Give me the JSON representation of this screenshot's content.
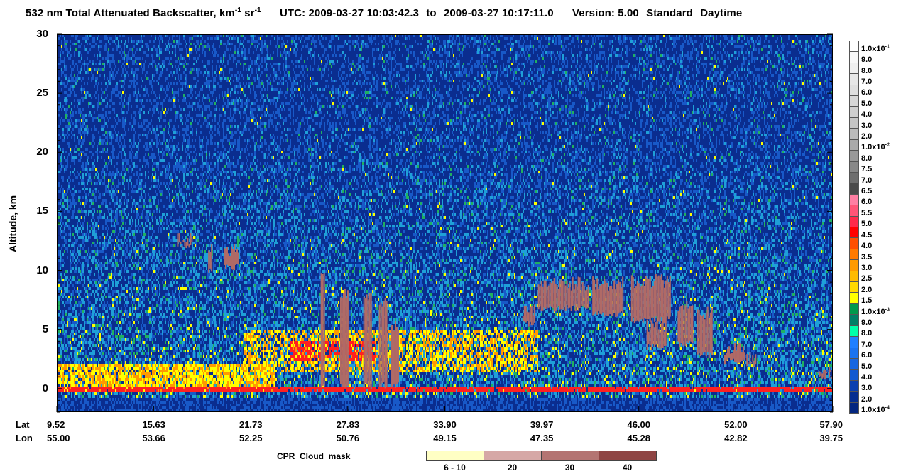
{
  "title": {
    "product_prefix": "532 nm Total Attenuated Backscatter, km",
    "sup1": "-1",
    "sr": " sr",
    "sup2": "-1",
    "utc_label": "UTC:",
    "start_time": "2009-03-27 10:03:42.3",
    "to_label": "to",
    "end_time": "2009-03-27 10:17:11.0",
    "version": "Version: 5.00",
    "mode": "Standard",
    "daynight": "Daytime"
  },
  "chart_data": {
    "type": "heatmap",
    "ylabel": "Altitude, km",
    "ylim": [
      -2,
      30
    ],
    "yticks": [
      "0",
      "5",
      "10",
      "15",
      "20",
      "25",
      "30"
    ],
    "ytick_values": [
      0,
      5,
      10,
      15,
      20,
      25,
      30
    ],
    "x_row_titles": [
      "Lat",
      "Lon"
    ],
    "lat_ticks": [
      "9.52",
      "15.63",
      "21.73",
      "27.83",
      "33.90",
      "39.97",
      "46.00",
      "52.00",
      "57.90"
    ],
    "lon_ticks": [
      "55.00",
      "53.66",
      "52.25",
      "50.76",
      "49.15",
      "47.35",
      "45.28",
      "42.82",
      "39.75"
    ],
    "colorbar": {
      "labels": [
        "1.0x10",
        "9.0",
        "8.0",
        "7.0",
        "6.0",
        "5.0",
        "4.0",
        "3.0",
        "2.0",
        "1.0x10",
        "8.0",
        "7.5",
        "7.0",
        "6.5",
        "6.0",
        "5.5",
        "5.0",
        "4.5",
        "4.0",
        "3.5",
        "3.0",
        "2.5",
        "2.0",
        "1.5",
        "1.0x10",
        "9.0",
        "8.0",
        "7.0",
        "6.0",
        "5.0",
        "4.0",
        "3.0",
        "2.0",
        "1.0x10"
      ],
      "exponents": [
        "-1",
        "",
        "",
        "",
        "",
        "",
        "",
        "",
        "",
        "-2",
        "",
        "",
        "",
        "",
        "",
        "",
        "",
        "",
        "",
        "",
        "",
        "",
        "",
        "",
        "-3",
        "",
        "",
        "",
        "",
        "",
        "",
        "",
        "",
        "-4"
      ],
      "colors": [
        "#ffffff",
        "#f7f7f7",
        "#efefef",
        "#e7e7e7",
        "#dfdfdf",
        "#d7d7d7",
        "#cfcfcf",
        "#c5c5c5",
        "#bbbbbb",
        "#aaaaaa",
        "#999999",
        "#888888",
        "#6e6e6e",
        "#4a4a4a",
        "#ff7fa3",
        "#ff5577",
        "#ff2a4a",
        "#ff0000",
        "#ff5000",
        "#ff7a00",
        "#ff9a00",
        "#ffbb00",
        "#ffd800",
        "#ffff00",
        "#00994c",
        "#007f66",
        "#00ffaa",
        "#1f7fff",
        "#1a73f0",
        "#1666e0",
        "#1259d0",
        "#0a3fb0",
        "#062e90",
        "#042680"
      ]
    },
    "cpr_legend": {
      "title": "CPR_Cloud_mask",
      "labels": [
        "6 - 10",
        "20",
        "30",
        "40"
      ],
      "colors": [
        "#ffffc4",
        "#d6a8a6",
        "#b47472",
        "#8f4544"
      ]
    },
    "colors": {
      "clear_dark": "#0a2d8f",
      "clear_mid": "#1859c8",
      "noise_cyan": "#1fa0d8",
      "green": "#20b060",
      "yellow": "#ffff00",
      "orange": "#ff9a00",
      "red": "#ff2020",
      "cpr_mask": "#b06a66"
    }
  }
}
